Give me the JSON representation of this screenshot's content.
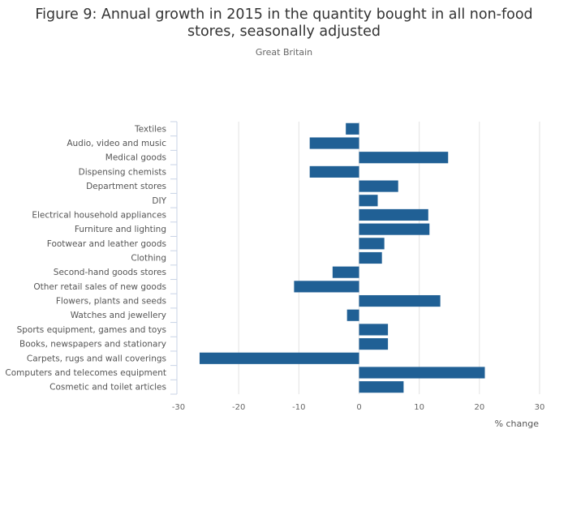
{
  "chart_data": {
    "type": "bar",
    "orientation": "horizontal",
    "title": "Figure 9: Annual growth in 2015 in the quantity bought in all non-food stores, seasonally adjusted",
    "title_lines": [
      "Figure 9: Annual growth in 2015 in the quantity bought in all non-food",
      "stores, seasonally adjusted"
    ],
    "subtitle": "Great Britain",
    "xlabel": "% change",
    "ylabel": "",
    "xlim": [
      -30,
      30
    ],
    "xticks": [
      -30,
      -20,
      -10,
      0,
      10,
      20,
      30
    ],
    "xtick_labels": [
      "-30",
      "-20",
      "-10",
      "0",
      "10",
      "20",
      "30"
    ],
    "grid": "vertical",
    "legend": "none",
    "bar_color": "#206095",
    "categories": [
      "Textiles",
      "Audio, video and music",
      "Medical goods",
      "Dispensing chemists",
      "Department stores",
      "DIY",
      "Electrical household appliances",
      "Furniture and lighting",
      "Footwear and leather goods",
      "Clothing",
      "Second-hand goods stores",
      "Other retail sales of new goods",
      "Flowers, plants and seeds",
      "Watches and jewellery",
      "Sports equipment, games and toys",
      "Books, newspapers and stationary",
      "Carpets, rugs and wall coverings",
      "Computers and telecomes equipment",
      "Cosmetic and toilet articles"
    ],
    "values": [
      -2.2,
      -8.2,
      14.8,
      -8.2,
      6.5,
      3.1,
      11.5,
      11.7,
      4.2,
      3.8,
      -4.4,
      -10.8,
      13.5,
      -2.0,
      4.8,
      4.8,
      -26.5,
      20.9,
      7.4
    ]
  }
}
